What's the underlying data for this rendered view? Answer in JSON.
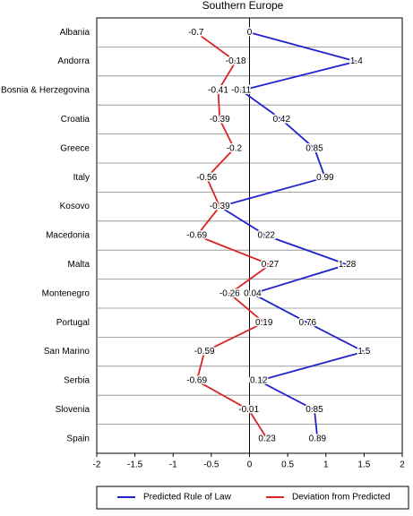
{
  "chart_data": {
    "type": "line",
    "orientation": "horizontal",
    "title": "Southern Europe",
    "categories": [
      "Albania",
      "Andorra",
      "Bosnia & Herzegovina",
      "Croatia",
      "Greece",
      "Italy",
      "Kosovo",
      "Macedonia",
      "Malta",
      "Montenegro",
      "Portugal",
      "San Marino",
      "Serbia",
      "Slovenia",
      "Spain"
    ],
    "series": [
      {
        "name": "Predicted Rule of Law",
        "color": "#2222cc",
        "values": [
          0,
          1.4,
          -0.11,
          0.42,
          0.85,
          0.99,
          -0.39,
          0.22,
          1.28,
          0.04,
          0.76,
          1.5,
          0.12,
          0.85,
          0.89
        ]
      },
      {
        "name": "Deviation from Predicted",
        "color": "#dd2222",
        "values": [
          -0.7,
          -0.18,
          -0.41,
          -0.39,
          -0.2,
          -0.56,
          -0.39,
          -0.69,
          0.27,
          -0.26,
          0.19,
          -0.59,
          -0.69,
          -0.01,
          0.23
        ]
      }
    ],
    "xlim": [
      -2,
      2
    ],
    "xticks": [
      -2,
      -1.5,
      -1,
      -0.5,
      0,
      0.5,
      1,
      1.5,
      2
    ],
    "legend": "bottom"
  }
}
